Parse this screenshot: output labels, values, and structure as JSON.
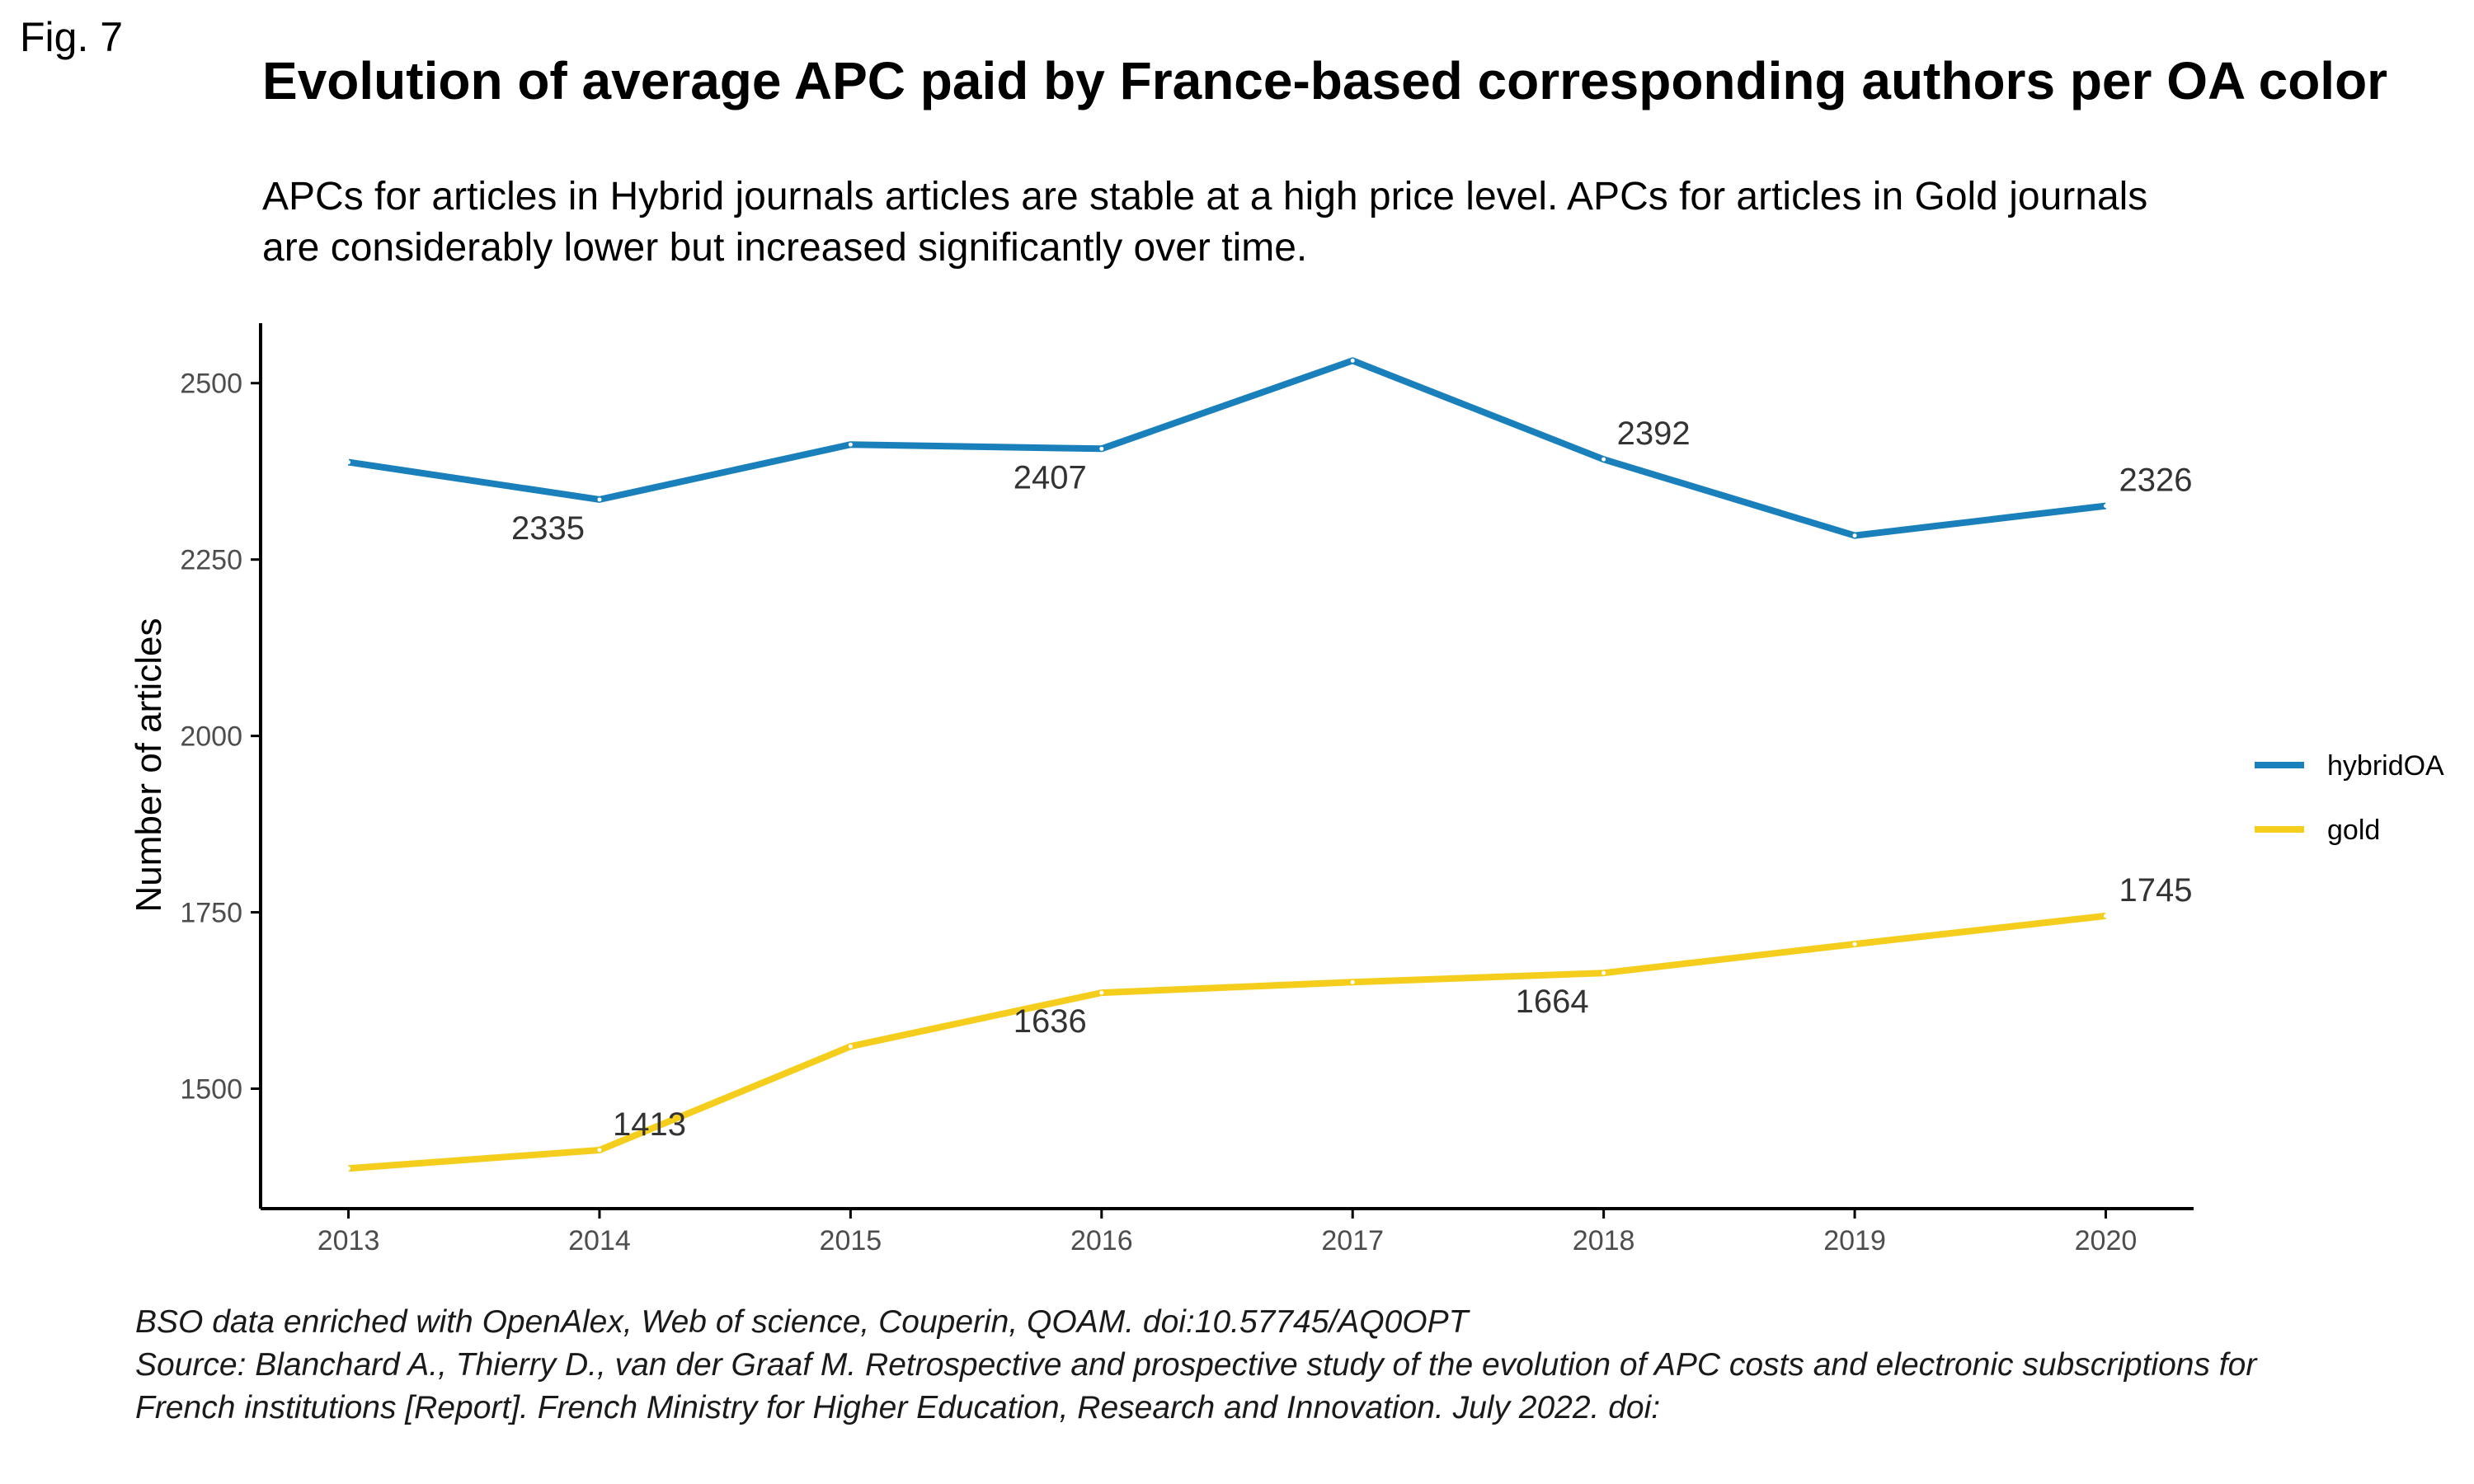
{
  "figure": {
    "label": "Fig. 7"
  },
  "colors": {
    "hybridOA": "#1a80bb",
    "gold": "#f5ce1d",
    "axis": "#000000",
    "tick_text": "#4d4d4d",
    "label_text": "#333333"
  },
  "caption": {
    "line1": "BSO data enriched with OpenAlex, Web of science, Couperin, QOAM. doi:10.57745/AQ0OPT",
    "line2": "Source: Blanchard A., Thierry D., van der Graaf M. Retrospective and prospective study of the evolution of APC costs and electronic subscriptions for",
    "line3": "French institutions [Report]. French Ministry for Higher Education, Research and Innovation. July 2022. doi:"
  },
  "chart_data": {
    "type": "line",
    "title": "Evolution of average APC paid by France-based corresponding authors per OA color",
    "subtitle": "APCs for articles in Hybrid journals articles are stable at a high price level. APCs for articles in Gold journals are considerably lower but increased significantly over time.",
    "xlabel": "",
    "ylabel": "Number of articles",
    "x": [
      2013,
      2014,
      2015,
      2016,
      2017,
      2018,
      2019,
      2020
    ],
    "xlim": [
      2012.65,
      2020.35
    ],
    "ylim": [
      1330,
      2585
    ],
    "yticks": [
      1500,
      1750,
      2000,
      2250,
      2500
    ],
    "grid": false,
    "legend_position": "right",
    "series": [
      {
        "name": "hybridOA",
        "values": [
          2388,
          2335,
          2413,
          2407,
          2532,
          2392,
          2284,
          2326
        ],
        "labels": [
          "",
          "2335",
          "",
          "2407",
          "",
          "2392",
          "",
          "2326"
        ],
        "label_pos": [
          "",
          "below-left",
          "",
          "below-left",
          "",
          "above-right",
          "",
          "above-right"
        ]
      },
      {
        "name": "gold",
        "values": [
          1387,
          1413,
          1560,
          1636,
          1651,
          1664,
          1705,
          1745
        ],
        "labels": [
          "",
          "1413",
          "",
          "1636",
          "",
          "1664",
          "",
          "1745"
        ],
        "label_pos": [
          "",
          "above-right",
          "",
          "below-left",
          "",
          "below-left",
          "",
          "above-right"
        ]
      }
    ]
  }
}
